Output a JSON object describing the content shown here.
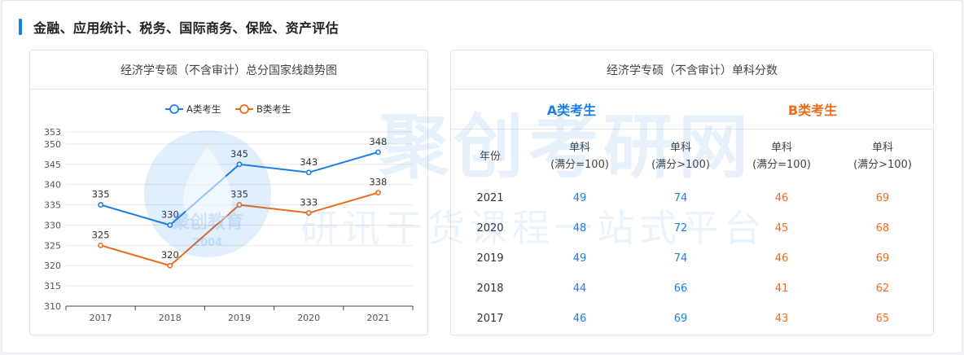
{
  "section_title": "金融、应用统计、税务、国际商务、保险、资产评估",
  "watermark": {
    "logo_text": "聚创教育",
    "logo_year": "2004",
    "big_text": "聚创考研网",
    "slogan": "研讯干货课程一站式平台"
  },
  "colors": {
    "series_a": "#1b7fe8",
    "series_b": "#f06a1c",
    "accent_bar": "#1b7fe8"
  },
  "chart_data": {
    "type": "line",
    "title": "经济学专硕（不含审计）总分国家线趋势图",
    "x": [
      "2017",
      "2018",
      "2019",
      "2020",
      "2021"
    ],
    "series": [
      {
        "name": "A类考生",
        "values": [
          335,
          330,
          345,
          343,
          348
        ]
      },
      {
        "name": "B类考生",
        "values": [
          325,
          320,
          335,
          333,
          338
        ]
      }
    ],
    "y_ticks": [
      310,
      315,
      320,
      325,
      330,
      335,
      340,
      345,
      350,
      353
    ],
    "ylim": [
      310,
      353
    ],
    "legend": "top",
    "grid": true
  },
  "table": {
    "title": "经济学专硕（不含审计）单科分数",
    "group_a": "A类考生",
    "group_b": "B类考生",
    "headers": {
      "year": "年份",
      "a_full100": [
        "单科",
        "(满分=100)"
      ],
      "a_full_over100": [
        "单科",
        "(满分>100)"
      ],
      "b_full100": [
        "单科",
        "(满分=100)"
      ],
      "b_full_over100": [
        "单科",
        "(满分>100)"
      ]
    },
    "rows": [
      {
        "year": "2021",
        "a100": "49",
        "a150": "74",
        "b100": "46",
        "b150": "69"
      },
      {
        "year": "2020",
        "a100": "48",
        "a150": "72",
        "b100": "45",
        "b150": "68"
      },
      {
        "year": "2019",
        "a100": "49",
        "a150": "74",
        "b100": "46",
        "b150": "69"
      },
      {
        "year": "2018",
        "a100": "44",
        "a150": "66",
        "b100": "41",
        "b150": "62"
      },
      {
        "year": "2017",
        "a100": "46",
        "a150": "69",
        "b100": "43",
        "b150": "65"
      }
    ]
  }
}
